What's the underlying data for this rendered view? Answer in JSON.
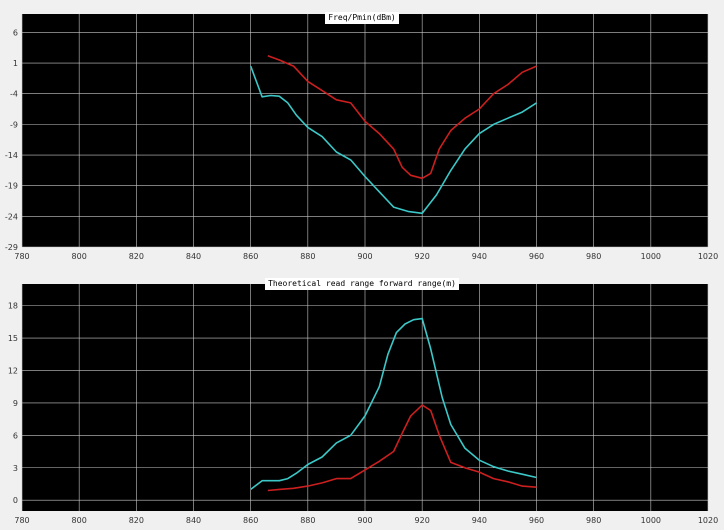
{
  "chart_data": [
    {
      "type": "line",
      "title": "Freq/Pmin(dBm)",
      "xlim": [
        780,
        1020
      ],
      "ylim": [
        -29,
        9
      ],
      "x_ticks": [
        780,
        800,
        820,
        840,
        860,
        880,
        900,
        920,
        940,
        960,
        980,
        1000,
        1020
      ],
      "y_ticks": [
        6,
        1,
        -4,
        -9,
        -14,
        -19,
        -24,
        -29
      ],
      "grid": true,
      "background": "#000000",
      "grid_color": "#c8c8c8",
      "series": [
        {
          "color": "#cc1f1f",
          "x": [
            866,
            870,
            875,
            880,
            885,
            890,
            895,
            900,
            905,
            910,
            913,
            916,
            920,
            923,
            926,
            930,
            935,
            940,
            945,
            950,
            955,
            960
          ],
          "y": [
            2.2,
            1.5,
            0.5,
            -2.0,
            -3.5,
            -5.0,
            -5.5,
            -8.5,
            -10.5,
            -13.0,
            -16.0,
            -17.3,
            -17.8,
            -17.0,
            -13.0,
            -10.0,
            -8.0,
            -6.5,
            -4.0,
            -2.5,
            -0.5,
            0.5
          ]
        },
        {
          "color": "#3cc8c8",
          "x": [
            860,
            864,
            867,
            870,
            873,
            876,
            880,
            885,
            890,
            895,
            900,
            905,
            910,
            915,
            920,
            925,
            930,
            935,
            940,
            945,
            950,
            955,
            960
          ],
          "y": [
            0.5,
            -4.5,
            -4.3,
            -4.4,
            -5.5,
            -7.5,
            -9.5,
            -11.0,
            -13.5,
            -14.8,
            -17.5,
            -20.0,
            -22.5,
            -23.2,
            -23.5,
            -20.5,
            -16.5,
            -13.0,
            -10.5,
            -9.0,
            -8.0,
            -7.0,
            -5.5
          ]
        }
      ]
    },
    {
      "type": "line",
      "title": "Theoretical read range forward range(m)",
      "xlim": [
        780,
        1020
      ],
      "ylim": [
        -1,
        20
      ],
      "x_ticks": [
        780,
        800,
        820,
        840,
        860,
        880,
        900,
        920,
        940,
        960,
        980,
        1000,
        1020
      ],
      "y_ticks": [
        18,
        15,
        12,
        9,
        6,
        3,
        0
      ],
      "grid": true,
      "background": "#000000",
      "grid_color": "#c8c8c8",
      "series": [
        {
          "color": "#cc1f1f",
          "x": [
            866,
            870,
            875,
            880,
            885,
            890,
            895,
            900,
            905,
            910,
            913,
            916,
            920,
            923,
            926,
            930,
            935,
            940,
            945,
            950,
            955,
            960
          ],
          "y": [
            0.9,
            1.0,
            1.1,
            1.3,
            1.6,
            2.0,
            2.0,
            2.8,
            3.6,
            4.5,
            6.2,
            7.8,
            8.8,
            8.3,
            6.0,
            3.5,
            3.0,
            2.6,
            2.0,
            1.7,
            1.3,
            1.2
          ]
        },
        {
          "color": "#3cc8c8",
          "x": [
            860,
            864,
            867,
            870,
            873,
            876,
            880,
            885,
            890,
            895,
            900,
            905,
            908,
            911,
            914,
            917,
            920,
            923,
            927,
            930,
            935,
            940,
            945,
            950,
            955,
            960
          ],
          "y": [
            1.0,
            1.8,
            1.8,
            1.8,
            2.0,
            2.5,
            3.3,
            4.0,
            5.3,
            6.0,
            7.8,
            10.5,
            13.5,
            15.5,
            16.3,
            16.7,
            16.8,
            14.0,
            9.5,
            7.0,
            4.8,
            3.7,
            3.1,
            2.7,
            2.4,
            2.1
          ]
        }
      ]
    }
  ]
}
